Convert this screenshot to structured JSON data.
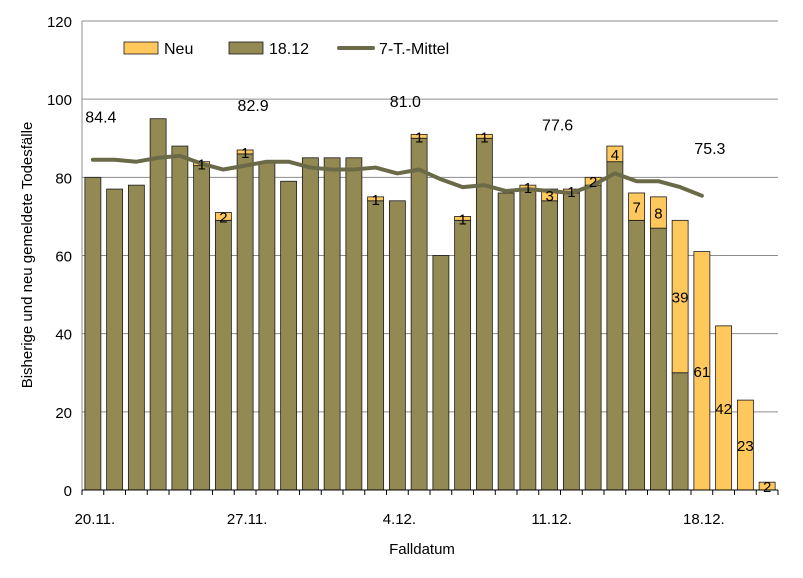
{
  "chart_data": {
    "type": "bar",
    "stacked": true,
    "xlabel": "Falldatum",
    "ylabel": "Bisherige und neu gemeldete Todesfälle",
    "ylim": [
      0,
      120
    ],
    "yticks": [
      0,
      20,
      40,
      60,
      80,
      100,
      120
    ],
    "grid": true,
    "legend_position": "top",
    "xtick_labels": [
      {
        "index": 0,
        "label": "20.11."
      },
      {
        "index": 7,
        "label": "27.11."
      },
      {
        "index": 14,
        "label": "4.12."
      },
      {
        "index": 21,
        "label": "11.12."
      },
      {
        "index": 28,
        "label": "18.12."
      }
    ],
    "series": [
      {
        "name": "18.12",
        "color": "#938953",
        "values": [
          80,
          77,
          78,
          95,
          88,
          83,
          69,
          86,
          84,
          79,
          85,
          85,
          85,
          74,
          74,
          90,
          60,
          69,
          90,
          76,
          77,
          74,
          76,
          78,
          84,
          69,
          67,
          30,
          0,
          0,
          0,
          0
        ]
      },
      {
        "name": "Neu",
        "color": "#ffc85c",
        "values": [
          0,
          0,
          0,
          0,
          0,
          1,
          2,
          1,
          0,
          0,
          0,
          0,
          0,
          1,
          0,
          1,
          0,
          1,
          1,
          0,
          1,
          3,
          1,
          2,
          4,
          7,
          8,
          39,
          61,
          42,
          23,
          2
        ]
      }
    ],
    "neu_labels": [
      {
        "index": 5,
        "text": "1"
      },
      {
        "index": 6,
        "text": "2"
      },
      {
        "index": 7,
        "text": "1"
      },
      {
        "index": 13,
        "text": "1"
      },
      {
        "index": 15,
        "text": "1"
      },
      {
        "index": 17,
        "text": "1"
      },
      {
        "index": 18,
        "text": "1"
      },
      {
        "index": 20,
        "text": "1"
      },
      {
        "index": 21,
        "text": "3"
      },
      {
        "index": 22,
        "text": "1"
      },
      {
        "index": 23,
        "text": "2"
      },
      {
        "index": 24,
        "text": "4"
      },
      {
        "index": 25,
        "text": "7"
      },
      {
        "index": 26,
        "text": "8"
      },
      {
        "index": 27,
        "text": "39"
      },
      {
        "index": 28,
        "text": "61"
      },
      {
        "index": 29,
        "text": "42"
      },
      {
        "index": 30,
        "text": "23"
      },
      {
        "index": 31,
        "text": "2"
      }
    ],
    "line": {
      "name": "7-T.-Mittel",
      "color": "#6b6a48",
      "values": [
        84.5,
        84.5,
        84,
        85,
        85.5,
        83.5,
        82,
        83,
        84,
        84,
        82.5,
        82,
        82,
        82.5,
        81,
        82,
        79.5,
        77.5,
        78,
        76.5,
        77,
        76.5,
        76,
        78,
        81,
        79,
        79,
        77.5,
        75.3
      ]
    },
    "annotations": [
      {
        "index": 0,
        "y": 94,
        "text": "84.4"
      },
      {
        "index": 7,
        "y": 97,
        "text": "82.9"
      },
      {
        "index": 14,
        "y": 98,
        "text": "81.0"
      },
      {
        "index": 21,
        "y": 92,
        "text": "77.6"
      },
      {
        "index": 28,
        "y": 86,
        "text": "75.3"
      }
    ]
  }
}
